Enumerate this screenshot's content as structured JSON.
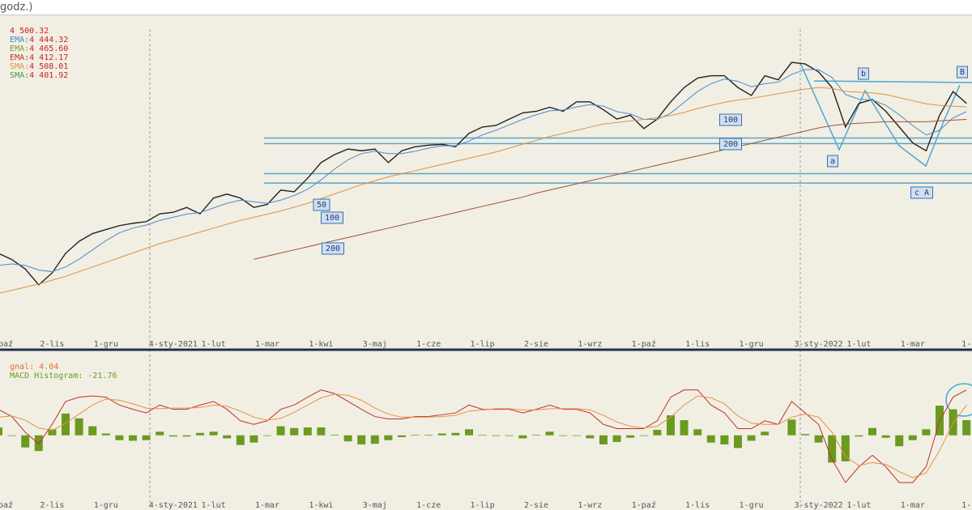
{
  "header": {
    "title": "godz.)"
  },
  "chart_data": [
    {
      "type": "line",
      "legend": [
        {
          "value": "4 500.32",
          "color": "#d02020"
        },
        {
          "label": "EMA:",
          "value": "4 444.32",
          "color": "#4a7fc8"
        },
        {
          "label": "EMA:",
          "value": "4 465.60",
          "color": "#8a9a30"
        },
        {
          "label": "EMA:",
          "value": "4 412.17",
          "color": "#c03030"
        },
        {
          "label": "SMA:",
          "value": "4 508.01",
          "color": "#e09040"
        },
        {
          "label": "SMA:",
          "value": "4 401.92",
          "color": "#40a040"
        }
      ],
      "categories": [
        "paź",
        null,
        null,
        null,
        "2-lis",
        null,
        null,
        null,
        "1-gru",
        null,
        null,
        null,
        null,
        "4-sty-2021",
        null,
        null,
        "1-lut",
        null,
        null,
        null,
        "1-mar",
        null,
        null,
        null,
        "1-kwi",
        null,
        null,
        null,
        "3-maj",
        null,
        null,
        null,
        "1-cze",
        null,
        null,
        null,
        "1-lip",
        null,
        null,
        null,
        "2-sie",
        null,
        null,
        null,
        "1-wrz",
        null,
        null,
        null,
        "1-paź",
        null,
        null,
        null,
        "1-lis",
        null,
        null,
        null,
        "1-gru",
        null,
        null,
        null,
        null,
        "3-sty-2022",
        null,
        null,
        "1-lut",
        null,
        null,
        null,
        "1-mar",
        null,
        null,
        null,
        "1-"
      ],
      "series": [
        {
          "color": "#222222",
          "values": [
            3558,
            3518,
            3457,
            3355,
            3432,
            3558,
            3635,
            3685,
            3711,
            3736,
            3751,
            3762,
            3812,
            3822,
            3853,
            3812,
            3914,
            3939,
            3914,
            3853,
            3873,
            3965,
            3954,
            4041,
            4142,
            4193,
            4229,
            4218,
            4229,
            4142,
            4218,
            4244,
            4254,
            4259,
            4244,
            4330,
            4371,
            4381,
            4422,
            4462,
            4472,
            4498,
            4472,
            4533,
            4533,
            4482,
            4422,
            4447,
            4361,
            4422,
            4533,
            4625,
            4686,
            4701,
            4701,
            4625,
            4574,
            4701,
            4675,
            4787,
            4777,
            4726,
            4625,
            4371,
            4523,
            4548,
            4472,
            4371,
            4269,
            4218,
            4447,
            4599,
            4523
          ]
        },
        {
          "color": "#4a8ad0",
          "values": [
            3480,
            3490,
            3480,
            3450,
            3440,
            3470,
            3520,
            3580,
            3640,
            3690,
            3720,
            3740,
            3770,
            3790,
            3810,
            3820,
            3850,
            3880,
            3900,
            3890,
            3880,
            3900,
            3930,
            3970,
            4030,
            4100,
            4160,
            4200,
            4215,
            4200,
            4200,
            4215,
            4235,
            4250,
            4250,
            4280,
            4320,
            4350,
            4385,
            4420,
            4450,
            4475,
            4480,
            4500,
            4515,
            4505,
            4470,
            4455,
            4420,
            4420,
            4460,
            4530,
            4600,
            4650,
            4680,
            4665,
            4630,
            4650,
            4660,
            4710,
            4740,
            4740,
            4690,
            4580,
            4550,
            4545,
            4510,
            4450,
            4380,
            4320,
            4350,
            4430,
            4470
          ]
        },
        {
          "color": "#e09040",
          "values": [
            3300,
            3320,
            3340,
            3360,
            3385,
            3410,
            3440,
            3470,
            3500,
            3530,
            3560,
            3590,
            3620,
            3645,
            3670,
            3695,
            3720,
            3745,
            3770,
            3790,
            3810,
            3830,
            3855,
            3880,
            3910,
            3940,
            3970,
            4000,
            4025,
            4050,
            4070,
            4090,
            4110,
            4130,
            4150,
            4170,
            4190,
            4210,
            4235,
            4260,
            4285,
            4310,
            4330,
            4350,
            4370,
            4390,
            4400,
            4410,
            4420,
            4430,
            4445,
            4465,
            4490,
            4510,
            4530,
            4545,
            4555,
            4570,
            4585,
            4600,
            4615,
            4625,
            4620,
            4600,
            4595,
            4590,
            4580,
            4560,
            4540,
            4520,
            4510,
            4505,
            4500
          ]
        },
        {
          "color": "#a0503a",
          "values": [
            null,
            null,
            null,
            null,
            null,
            null,
            null,
            null,
            null,
            null,
            null,
            null,
            null,
            null,
            null,
            null,
            null,
            null,
            null,
            3520,
            3540,
            3560,
            3580,
            3600,
            3620,
            3640,
            3660,
            3680,
            3700,
            3720,
            3740,
            3760,
            3780,
            3800,
            3820,
            3840,
            3860,
            3880,
            3900,
            3920,
            3945,
            3965,
            3985,
            4005,
            4025,
            4045,
            4065,
            4085,
            4105,
            4125,
            4145,
            4165,
            4185,
            4205,
            4225,
            4245,
            4265,
            4285,
            4305,
            4325,
            4345,
            4365,
            4380,
            4390,
            4395,
            4400,
            4405,
            4405,
            4405,
            4405,
            4410,
            4415,
            4420
          ]
        }
      ],
      "levels": [
        4300,
        4264,
        4071,
        4010
      ],
      "level_color": "#5aa5c8",
      "annotations": [
        "50",
        "100",
        "200",
        "100",
        "200",
        "a",
        "b",
        "c A",
        "B"
      ],
      "ylim": [
        3000,
        4980
      ]
    },
    {
      "type": "macd",
      "legend": [
        {
          "value": "gnal: 4.04",
          "color": "#e07030"
        },
        {
          "value": "MACD Histogram: -21.76",
          "color": "#6a9a20"
        }
      ],
      "categories": [
        "paź",
        null,
        null,
        null,
        "2-lis",
        null,
        null,
        null,
        "1-gru",
        null,
        null,
        null,
        null,
        "4-sty-2021",
        null,
        null,
        "1-lut",
        null,
        null,
        null,
        "1-mar",
        null,
        null,
        null,
        "1-kwi",
        null,
        null,
        null,
        "3-maj",
        null,
        null,
        null,
        "1-cze",
        null,
        null,
        null,
        "1-lip",
        null,
        null,
        null,
        "2-sie",
        null,
        null,
        null,
        "1-wrz",
        null,
        null,
        null,
        "1-paź",
        null,
        null,
        null,
        "1-lis",
        null,
        null,
        null,
        "1-gru",
        null,
        null,
        null,
        null,
        "3-sty-2022",
        null,
        null,
        "1-lut",
        null,
        null,
        null,
        "1-mar",
        null,
        null,
        null,
        "1-"
      ],
      "histogram": {
        "color": "#6a9a20",
        "values": [
          13,
          -1,
          -20,
          -26,
          10,
          36,
          28,
          15,
          3,
          -8,
          -9,
          -8,
          6,
          -2,
          -2,
          4,
          6,
          -5,
          -16,
          -12,
          -1,
          15,
          12,
          13,
          13,
          1,
          -10,
          -15,
          -14,
          -8,
          -3,
          1,
          1,
          3,
          4,
          10,
          1,
          -1,
          -1,
          -5,
          1,
          6,
          -1,
          -1,
          -5,
          -15,
          -11,
          -4,
          -1,
          9,
          33,
          25,
          10,
          -12,
          -15,
          -21,
          -9,
          6,
          0,
          26,
          2,
          -12,
          -45,
          -43,
          -2,
          12,
          -4,
          -18,
          -8,
          10,
          49,
          43,
          25
        ]
      },
      "series": [
        {
          "color": "#c03028",
          "values": [
            43,
            31,
            5,
            -14,
            18,
            56,
            63,
            65,
            63,
            50,
            43,
            37,
            50,
            43,
            43,
            50,
            56,
            43,
            24,
            18,
            24,
            43,
            50,
            63,
            75,
            69,
            56,
            43,
            31,
            27,
            27,
            31,
            31,
            34,
            37,
            50,
            43,
            43,
            43,
            37,
            43,
            50,
            43,
            43,
            37,
            18,
            11,
            11,
            11,
            24,
            63,
            75,
            75,
            50,
            37,
            11,
            11,
            24,
            18,
            56,
            37,
            18,
            -40,
            -78,
            -52,
            -33,
            -52,
            -78,
            -78,
            -52,
            24,
            63,
            75
          ]
        },
        {
          "color": "#e89040",
          "values": [
            30,
            32,
            25,
            12,
            8,
            20,
            35,
            50,
            60,
            58,
            52,
            45,
            44,
            45,
            45,
            46,
            50,
            48,
            40,
            30,
            25,
            28,
            38,
            50,
            62,
            68,
            66,
            58,
            45,
            35,
            30,
            30,
            30,
            31,
            33,
            40,
            42,
            44,
            44,
            42,
            42,
            44,
            44,
            44,
            42,
            33,
            22,
            15,
            12,
            15,
            30,
            50,
            65,
            62,
            52,
            32,
            20,
            18,
            18,
            30,
            35,
            30,
            5,
            -35,
            -50,
            -45,
            -48,
            -60,
            -70,
            -62,
            -25,
            20,
            50
          ]
        }
      ],
      "ylim": [
        -110,
        120
      ]
    }
  ]
}
